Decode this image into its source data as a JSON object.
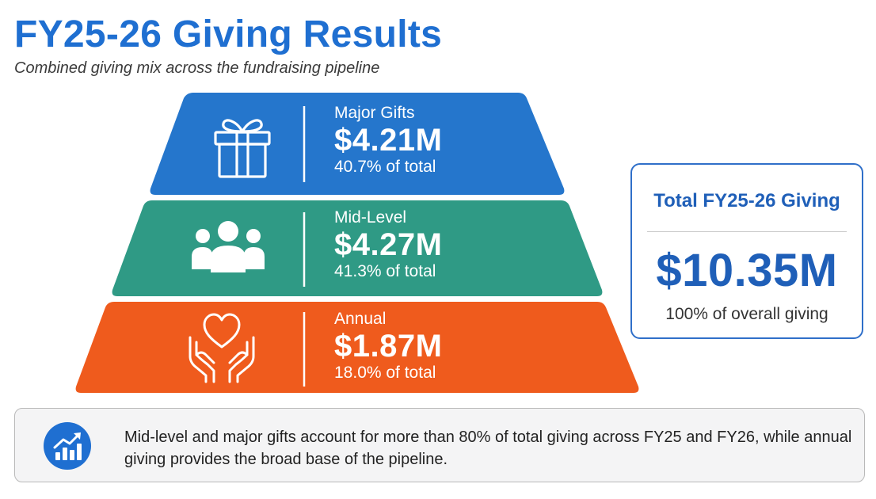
{
  "header": {
    "title": "FY25-26 Giving Results",
    "subtitle": "Combined giving mix across the fundraising pipeline"
  },
  "tiers": [
    {
      "name": "Major Gifts",
      "value": "$4.21M",
      "percent": "40.7% of total",
      "share": 40.7,
      "color": "#2576cc",
      "icon": "gift-icon"
    },
    {
      "name": "Mid-Level",
      "value": "$4.27M",
      "percent": "41.3% of total",
      "share": 41.3,
      "color": "#2f9a85",
      "icon": "people-icon"
    },
    {
      "name": "Annual",
      "value": "$1.87M",
      "percent": "18.0% of total",
      "share": 18.0,
      "color": "#ef5b1d",
      "icon": "heart-hands-icon"
    }
  ],
  "total": {
    "title": "Total FY25-26 Giving",
    "value": "$10.35M",
    "note": "100% of overall giving"
  },
  "insight": {
    "icon": "growth-chart-icon",
    "text": "Mid-level and major gifts account for more than 80% of total giving across FY25 and FY26, while annual giving provides the broad base of the pipeline."
  }
}
